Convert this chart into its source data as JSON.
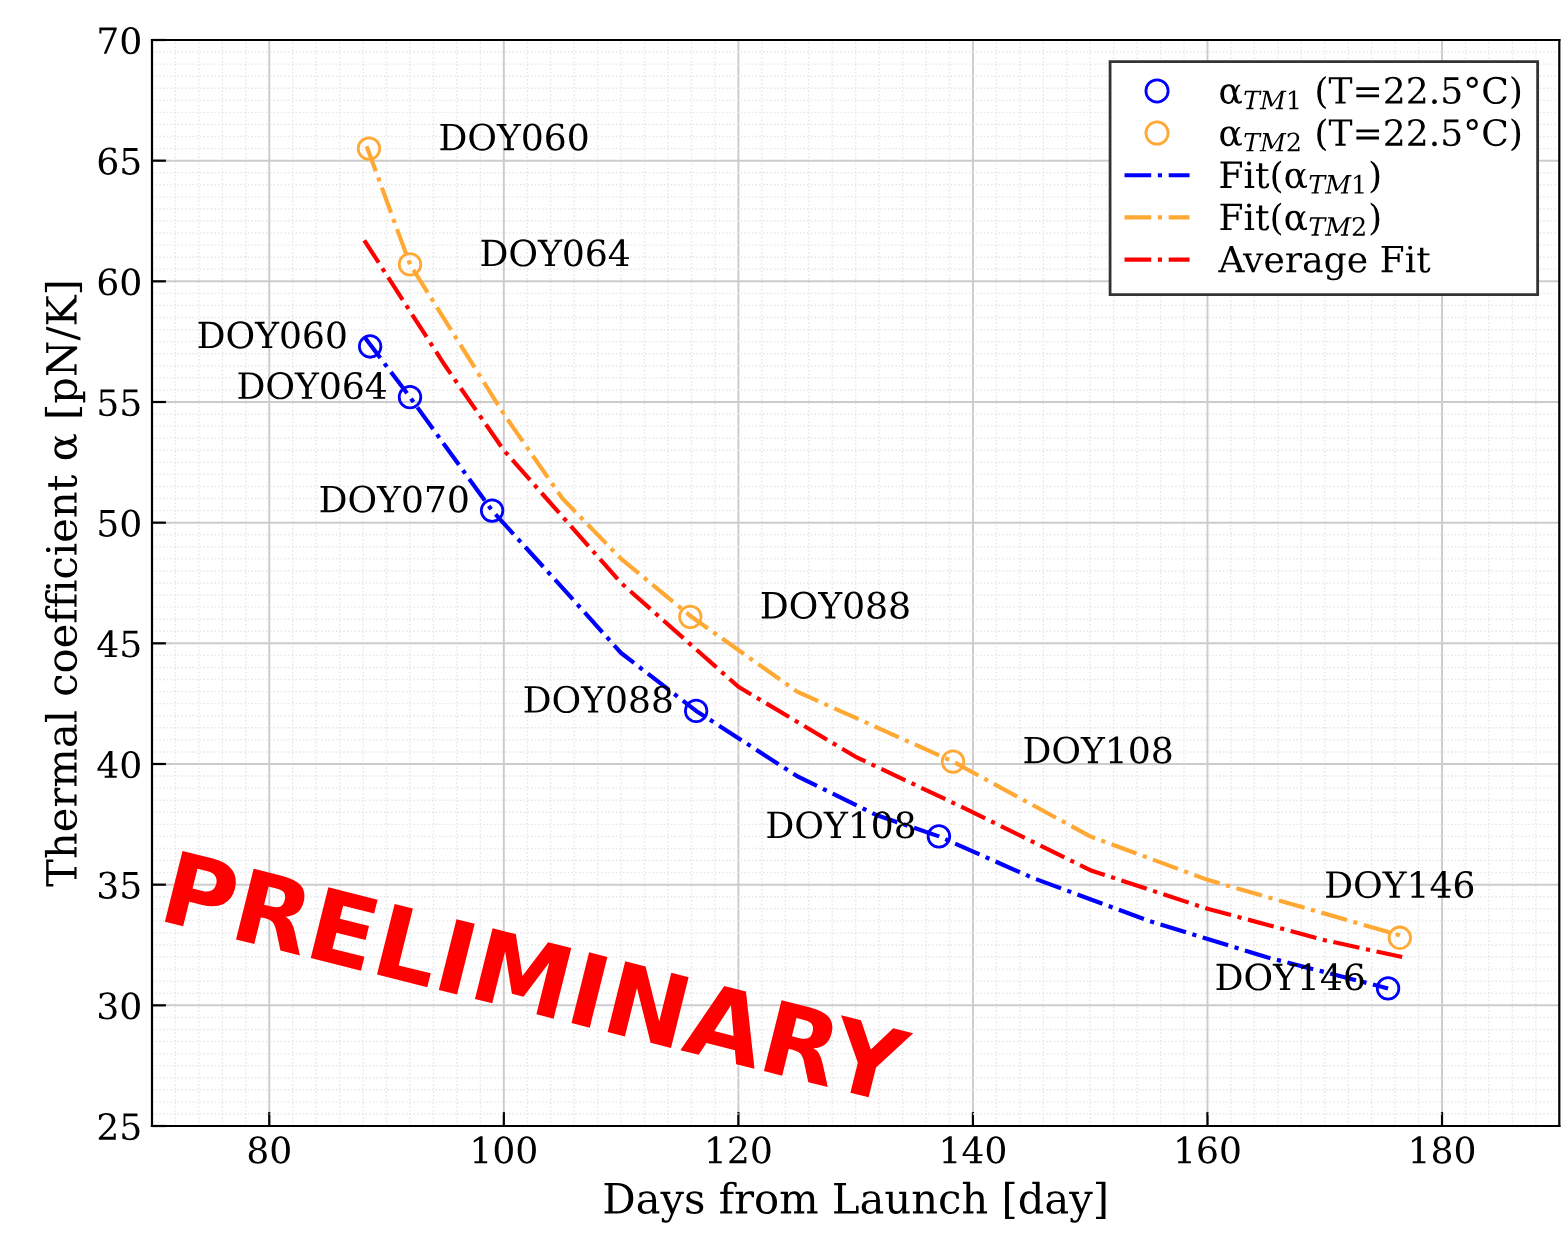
{
  "chart_data": {
    "type": "scatter",
    "xlabel": "Days from Launch [day]",
    "ylabel": "Thermal coefficient α [pN/K]",
    "xlim": [
      70,
      190
    ],
    "xticks": [
      80,
      100,
      120,
      140,
      160,
      180
    ],
    "ylim": [
      25,
      70
    ],
    "yticks": [
      25,
      30,
      35,
      40,
      45,
      50,
      55,
      60,
      65,
      70
    ],
    "grid": true,
    "legend": "top right",
    "series": [
      {
        "name": "α$_{TM1}$ (T=22.5°C)",
        "marker": "circle",
        "color": "#0000ff",
        "x": [
          88.6,
          92.0,
          99.0,
          116.4,
          137.1,
          175.4
        ],
        "values": [
          57.3,
          55.2,
          50.5,
          42.2,
          37.0,
          30.7
        ]
      },
      {
        "name": "α$_{TM2}$ (T=22.5°C)",
        "marker": "circle",
        "color": "#ffa833",
        "x": [
          88.5,
          92.0,
          115.9,
          138.3,
          176.4
        ],
        "values": [
          65.5,
          60.7,
          46.1,
          40.1,
          32.8
        ]
      },
      {
        "name": "Fit(α$_{TM1}$)",
        "type": "line",
        "line_style": "dashdot",
        "color": "#0000ff",
        "x": [
          88.1,
          92,
          99,
          105,
          110,
          116.4,
          125,
          131.7,
          137.1,
          145,
          155,
          165,
          175.4
        ],
        "values": [
          57.7,
          55.2,
          50.5,
          47.3,
          44.6,
          42.2,
          39.5,
          37.9,
          37.0,
          35.3,
          33.5,
          32.0,
          30.7
        ]
      },
      {
        "name": "Fit(α$_{TM2}$)",
        "type": "line",
        "line_style": "dashdot",
        "color": "#ffa833",
        "x": [
          88.3,
          92,
          100,
          105,
          110,
          116,
          125,
          138.3,
          150,
          160,
          170,
          176.4
        ],
        "values": [
          65.6,
          60.7,
          54.5,
          51.0,
          48.5,
          46.1,
          43.0,
          40.1,
          37.0,
          35.2,
          33.8,
          32.9
        ]
      },
      {
        "name": "Average Fit",
        "type": "line",
        "line_style": "dashdot",
        "color": "#ff0000",
        "x": [
          88.1,
          95,
          100,
          110,
          120,
          130,
          140,
          150,
          160,
          170,
          176.6
        ],
        "values": [
          61.7,
          56.5,
          53.0,
          47.5,
          43.2,
          40.3,
          38.0,
          35.6,
          34.0,
          32.7,
          32.0
        ]
      }
    ],
    "annotations": [
      {
        "text": "DOY060",
        "x": 88.6,
        "y": 57.3
      },
      {
        "text": "DOY064",
        "x": 92.0,
        "y": 55.2
      },
      {
        "text": "DOY070",
        "x": 99.0,
        "y": 50.5
      },
      {
        "text": "DOY088",
        "x": 116.4,
        "y": 42.2
      },
      {
        "text": "DOY108",
        "x": 137.1,
        "y": 37.0
      },
      {
        "text": "DOY146",
        "x": 175.4,
        "y": 30.7
      },
      {
        "text": "DOY060",
        "x": 88.5,
        "y": 65.5
      },
      {
        "text": "DOY064",
        "x": 92.0,
        "y": 60.7
      },
      {
        "text": "DOY088",
        "x": 115.9,
        "y": 46.1
      },
      {
        "text": "DOY108",
        "x": 138.3,
        "y": 40.1
      },
      {
        "text": "DOY146",
        "x": 176.4,
        "y": 32.8
      },
      "PRELIMINARY"
    ]
  }
}
